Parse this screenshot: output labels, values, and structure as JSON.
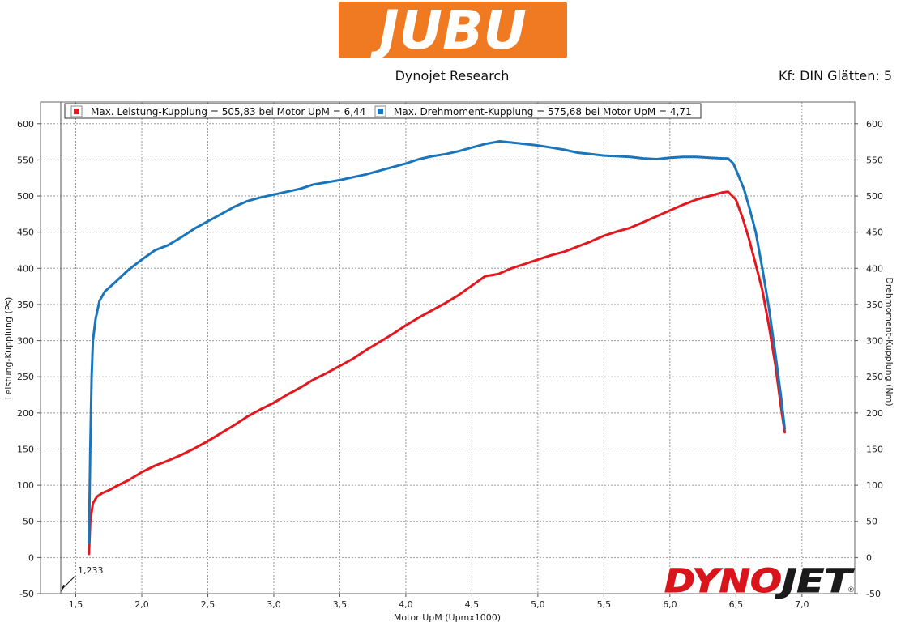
{
  "header": {
    "logo_text": "JUBU",
    "subtitle": "Dynojet Research",
    "settings": "Kf: DIN Glätten: 5"
  },
  "colors": {
    "logo_orange": "#F07A22",
    "power": "#E3181F",
    "torque": "#1B75BB",
    "dynojet_red": "#D9141A",
    "dynojet_black": "#1a1a1a"
  },
  "watermark": {
    "text_red": "DYNO",
    "text_black": "JET",
    "registered": "®"
  },
  "cursor": {
    "label": "1,233"
  },
  "chart_data": {
    "type": "line",
    "xlabel": "Motor UpM (Upmx1000)",
    "ylabel_left": "Leistung-Kupplung (Ps)",
    "ylabel_right": "Drehmoment-Kupplung (Nm)",
    "xlim": [
      1.233,
      7.4
    ],
    "ylim": [
      -50,
      630
    ],
    "x_ticks": [
      "1,5",
      "2,0",
      "2,5",
      "3,0",
      "3,5",
      "4,0",
      "4,5",
      "5,0",
      "5,5",
      "6,0",
      "6,5",
      "7,0"
    ],
    "y_ticks": [
      "-50",
      "0",
      "50",
      "100",
      "150",
      "200",
      "250",
      "300",
      "350",
      "400",
      "450",
      "500",
      "550",
      "600"
    ],
    "grid": true,
    "legend_position": "top-left",
    "series": [
      {
        "name": "Max. Leistung-Kupplung = 505,83 bei Motor UpM = 6,44",
        "color": "#E3181F",
        "points": [
          [
            1.6,
            5
          ],
          [
            1.61,
            50
          ],
          [
            1.63,
            75
          ],
          [
            1.66,
            84
          ],
          [
            1.7,
            89
          ],
          [
            1.75,
            93
          ],
          [
            1.8,
            98
          ],
          [
            1.9,
            107
          ],
          [
            2.0,
            118
          ],
          [
            2.1,
            127
          ],
          [
            2.2,
            134
          ],
          [
            2.3,
            142
          ],
          [
            2.4,
            151
          ],
          [
            2.5,
            161
          ],
          [
            2.6,
            172
          ],
          [
            2.7,
            183
          ],
          [
            2.8,
            195
          ],
          [
            2.9,
            205
          ],
          [
            3.0,
            214
          ],
          [
            3.1,
            225
          ],
          [
            3.2,
            235
          ],
          [
            3.3,
            246
          ],
          [
            3.4,
            255
          ],
          [
            3.5,
            265
          ],
          [
            3.6,
            275
          ],
          [
            3.7,
            287
          ],
          [
            3.8,
            298
          ],
          [
            3.9,
            309
          ],
          [
            4.0,
            321
          ],
          [
            4.1,
            332
          ],
          [
            4.2,
            342
          ],
          [
            4.3,
            352
          ],
          [
            4.4,
            363
          ],
          [
            4.5,
            376
          ],
          [
            4.6,
            389
          ],
          [
            4.7,
            392
          ],
          [
            4.8,
            400
          ],
          [
            4.9,
            406
          ],
          [
            5.0,
            412
          ],
          [
            5.1,
            418
          ],
          [
            5.2,
            423
          ],
          [
            5.3,
            430
          ],
          [
            5.4,
            437
          ],
          [
            5.5,
            445
          ],
          [
            5.6,
            451
          ],
          [
            5.7,
            456
          ],
          [
            5.8,
            464
          ],
          [
            5.9,
            472
          ],
          [
            6.0,
            480
          ],
          [
            6.1,
            488
          ],
          [
            6.2,
            495
          ],
          [
            6.3,
            500
          ],
          [
            6.4,
            505
          ],
          [
            6.44,
            505.83
          ],
          [
            6.5,
            495
          ],
          [
            6.55,
            470
          ],
          [
            6.6,
            440
          ],
          [
            6.65,
            405
          ],
          [
            6.7,
            370
          ],
          [
            6.75,
            320
          ],
          [
            6.8,
            265
          ],
          [
            6.84,
            210
          ],
          [
            6.87,
            173
          ]
        ]
      },
      {
        "name": "Max. Drehmoment-Kupplung = 575,68 bei Motor UpM = 4,71",
        "color": "#1B75BB",
        "points": [
          [
            1.6,
            20
          ],
          [
            1.61,
            150
          ],
          [
            1.62,
            250
          ],
          [
            1.63,
            300
          ],
          [
            1.65,
            330
          ],
          [
            1.68,
            355
          ],
          [
            1.72,
            368
          ],
          [
            1.8,
            381
          ],
          [
            1.9,
            398
          ],
          [
            2.0,
            412
          ],
          [
            2.1,
            425
          ],
          [
            2.2,
            432
          ],
          [
            2.3,
            443
          ],
          [
            2.4,
            455
          ],
          [
            2.5,
            465
          ],
          [
            2.6,
            475
          ],
          [
            2.7,
            485
          ],
          [
            2.8,
            493
          ],
          [
            2.9,
            498
          ],
          [
            3.0,
            502
          ],
          [
            3.1,
            506
          ],
          [
            3.2,
            510
          ],
          [
            3.3,
            516
          ],
          [
            3.4,
            519
          ],
          [
            3.5,
            522
          ],
          [
            3.6,
            526
          ],
          [
            3.7,
            530
          ],
          [
            3.8,
            535
          ],
          [
            3.9,
            540
          ],
          [
            4.0,
            545
          ],
          [
            4.1,
            551
          ],
          [
            4.2,
            555
          ],
          [
            4.3,
            558
          ],
          [
            4.4,
            562
          ],
          [
            4.5,
            567
          ],
          [
            4.6,
            572
          ],
          [
            4.71,
            575.68
          ],
          [
            4.8,
            574
          ],
          [
            4.9,
            572
          ],
          [
            5.0,
            570
          ],
          [
            5.1,
            567
          ],
          [
            5.2,
            564
          ],
          [
            5.3,
            560
          ],
          [
            5.4,
            558
          ],
          [
            5.5,
            556
          ],
          [
            5.6,
            555
          ],
          [
            5.7,
            554
          ],
          [
            5.8,
            552
          ],
          [
            5.9,
            551
          ],
          [
            6.0,
            553
          ],
          [
            6.1,
            554
          ],
          [
            6.2,
            554
          ],
          [
            6.3,
            553
          ],
          [
            6.4,
            552
          ],
          [
            6.44,
            552
          ],
          [
            6.48,
            545
          ],
          [
            6.52,
            528
          ],
          [
            6.56,
            510
          ],
          [
            6.6,
            485
          ],
          [
            6.65,
            450
          ],
          [
            6.7,
            400
          ],
          [
            6.75,
            345
          ],
          [
            6.8,
            280
          ],
          [
            6.84,
            225
          ],
          [
            6.87,
            178
          ]
        ]
      }
    ]
  }
}
